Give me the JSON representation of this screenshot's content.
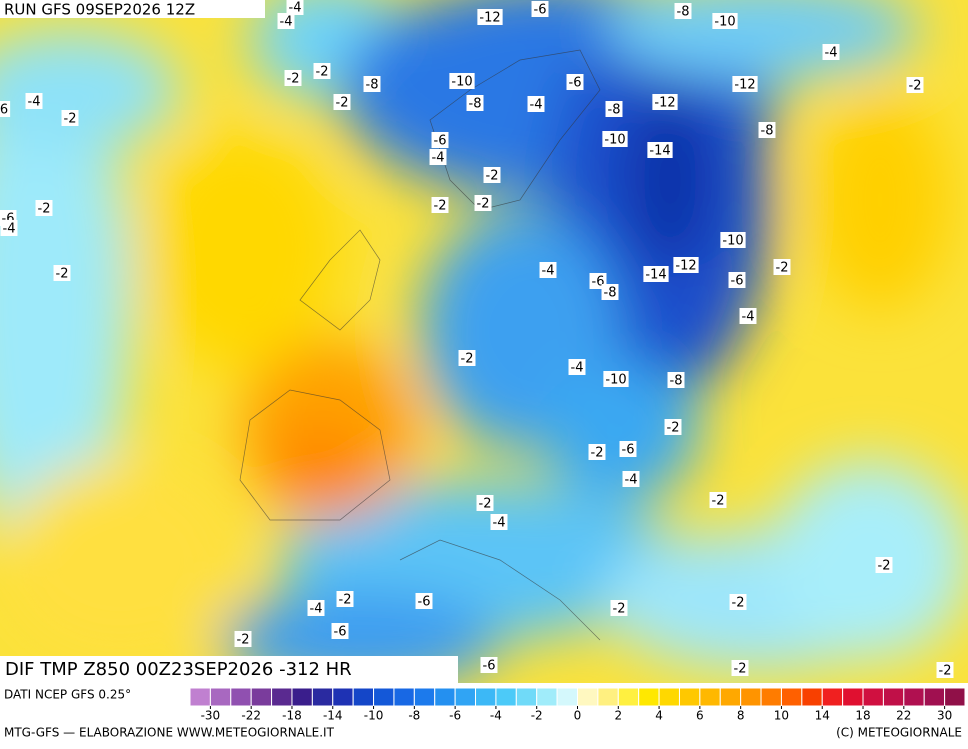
{
  "header": {
    "run": "RUN GFS 09SEP2026 12Z",
    "field": "DIF TMP Z850 00Z23SEP2026 -312 HR"
  },
  "footer": {
    "source": "DATI NCEP GFS 0.25°",
    "credit": "MTG-GFS — ELABORAZIONE WWW.METEOGIORNALE.IT",
    "copyright": "(C) METEOGIORNALE"
  },
  "contour_labels": [
    "-4",
    "-4",
    "-12",
    "-6",
    "-8",
    "-10",
    "-4",
    "-2",
    "-2",
    "-8",
    "-10",
    "-6",
    "-12",
    "-2",
    "6",
    "-4",
    "-2",
    "-2",
    "-8",
    "-4",
    "-8",
    "-12",
    "-8",
    "-6",
    "-10",
    "-14",
    "-4",
    "-2",
    "-6",
    "-2",
    "-4",
    "-2",
    "-2",
    "-10",
    "-2",
    "-4",
    "-6",
    "-14",
    "-12",
    "-8",
    "-6",
    "-2",
    "-4",
    "-2",
    "-4",
    "-10",
    "-8",
    "-2",
    "-2",
    "-6",
    "-4",
    "-2",
    "-2",
    "-4",
    "-2",
    "-4",
    "-2",
    "-6",
    "-2",
    "-2",
    "-6",
    "-2",
    "-6",
    "-2",
    "-2"
  ],
  "colorbar": {
    "colors": [
      "#c080d0",
      "#a868c0",
      "#9050b0",
      "#7a3c9c",
      "#5a2a90",
      "#3a1e8c",
      "#2a2aa0",
      "#1e32b4",
      "#1446c8",
      "#1458d8",
      "#1868e4",
      "#1c7aec",
      "#2490f0",
      "#30a4f4",
      "#3cb8f6",
      "#4ccaf8",
      "#70daf8",
      "#a0ecfa",
      "#d4f8fc",
      "#fff8c0",
      "#fff080",
      "#fff040",
      "#ffe800",
      "#ffd800",
      "#ffc800",
      "#ffb800",
      "#ffa800",
      "#ff9400",
      "#ff7c00",
      "#ff6000",
      "#f84000",
      "#f02020",
      "#e01030",
      "#d01040",
      "#c01048",
      "#b01050",
      "#a01050",
      "#901048"
    ],
    "ticks": [
      -30,
      -22,
      -18,
      -14,
      -10,
      -8,
      -6,
      -4,
      -2,
      0,
      2,
      4,
      6,
      8,
      10,
      14,
      18,
      22,
      30
    ]
  }
}
